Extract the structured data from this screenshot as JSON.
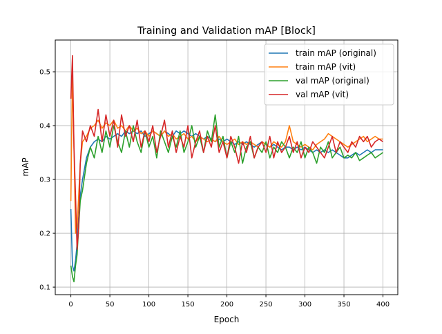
{
  "chart_data": {
    "type": "line",
    "title": "Training and Validation mAP [Block]",
    "xlabel": "Epoch",
    "ylabel": "mAP",
    "xlim": [
      -20,
      419
    ],
    "ylim": [
      0.086,
      0.559
    ],
    "xticks": [
      0,
      50,
      100,
      150,
      200,
      250,
      300,
      350,
      400
    ],
    "yticks": [
      0.1,
      0.2,
      0.3,
      0.4,
      0.5
    ],
    "grid": true,
    "legend_position": "top-right",
    "x": [
      0,
      2,
      4,
      6,
      8,
      10,
      12,
      15,
      20,
      25,
      30,
      35,
      40,
      45,
      50,
      55,
      60,
      65,
      70,
      75,
      80,
      85,
      90,
      95,
      100,
      105,
      110,
      115,
      120,
      125,
      130,
      135,
      140,
      145,
      150,
      155,
      160,
      165,
      170,
      175,
      180,
      185,
      190,
      195,
      200,
      205,
      210,
      215,
      220,
      225,
      230,
      235,
      240,
      245,
      250,
      255,
      260,
      265,
      270,
      275,
      280,
      285,
      290,
      295,
      300,
      305,
      310,
      315,
      320,
      325,
      330,
      335,
      340,
      345,
      350,
      355,
      360,
      365,
      370,
      375,
      380,
      385,
      390,
      395,
      400
    ],
    "series": [
      {
        "name": "train mAP (original)",
        "color": "#1f77b4",
        "values": [
          0.245,
          0.14,
          0.13,
          0.15,
          0.18,
          0.23,
          0.27,
          0.3,
          0.34,
          0.36,
          0.37,
          0.375,
          0.37,
          0.38,
          0.375,
          0.38,
          0.385,
          0.38,
          0.39,
          0.385,
          0.39,
          0.385,
          0.39,
          0.38,
          0.385,
          0.39,
          0.385,
          0.38,
          0.39,
          0.385,
          0.38,
          0.39,
          0.385,
          0.39,
          0.385,
          0.38,
          0.385,
          0.38,
          0.375,
          0.38,
          0.375,
          0.37,
          0.375,
          0.37,
          0.375,
          0.37,
          0.365,
          0.37,
          0.365,
          0.37,
          0.365,
          0.36,
          0.365,
          0.37,
          0.365,
          0.36,
          0.365,
          0.36,
          0.355,
          0.36,
          0.36,
          0.355,
          0.36,
          0.355,
          0.36,
          0.355,
          0.35,
          0.355,
          0.35,
          0.355,
          0.35,
          0.355,
          0.35,
          0.345,
          0.34,
          0.34,
          0.345,
          0.35,
          0.345,
          0.35,
          0.355,
          0.35,
          0.355,
          0.355,
          0.355
        ]
      },
      {
        "name": "train mAP (vit)",
        "color": "#ff7f0e",
        "values": [
          0.26,
          0.5,
          0.36,
          0.2,
          0.21,
          0.27,
          0.33,
          0.37,
          0.38,
          0.395,
          0.4,
          0.41,
          0.395,
          0.405,
          0.4,
          0.41,
          0.395,
          0.4,
          0.39,
          0.4,
          0.39,
          0.395,
          0.385,
          0.39,
          0.38,
          0.39,
          0.385,
          0.38,
          0.39,
          0.38,
          0.385,
          0.375,
          0.38,
          0.385,
          0.375,
          0.38,
          0.37,
          0.38,
          0.375,
          0.37,
          0.375,
          0.37,
          0.38,
          0.37,
          0.365,
          0.37,
          0.375,
          0.365,
          0.37,
          0.365,
          0.37,
          0.365,
          0.36,
          0.37,
          0.365,
          0.36,
          0.37,
          0.365,
          0.36,
          0.37,
          0.4,
          0.37,
          0.365,
          0.36,
          0.365,
          0.36,
          0.355,
          0.365,
          0.37,
          0.375,
          0.385,
          0.38,
          0.375,
          0.37,
          0.365,
          0.36,
          0.365,
          0.37,
          0.375,
          0.38,
          0.37,
          0.375,
          0.38,
          0.375,
          0.375
        ]
      },
      {
        "name": "val mAP (original)",
        "color": "#2ca02c",
        "values": [
          0.14,
          0.12,
          0.11,
          0.14,
          0.16,
          0.21,
          0.26,
          0.28,
          0.33,
          0.36,
          0.34,
          0.38,
          0.35,
          0.39,
          0.36,
          0.4,
          0.37,
          0.35,
          0.39,
          0.36,
          0.4,
          0.37,
          0.35,
          0.39,
          0.36,
          0.38,
          0.34,
          0.39,
          0.37,
          0.35,
          0.38,
          0.36,
          0.39,
          0.35,
          0.37,
          0.4,
          0.36,
          0.38,
          0.35,
          0.39,
          0.37,
          0.42,
          0.36,
          0.38,
          0.34,
          0.37,
          0.35,
          0.38,
          0.33,
          0.36,
          0.37,
          0.34,
          0.36,
          0.35,
          0.37,
          0.34,
          0.36,
          0.35,
          0.37,
          0.36,
          0.34,
          0.36,
          0.35,
          0.37,
          0.34,
          0.36,
          0.35,
          0.33,
          0.36,
          0.35,
          0.37,
          0.34,
          0.35,
          0.36,
          0.34,
          0.345,
          0.34,
          0.35,
          0.335,
          0.34,
          0.345,
          0.35,
          0.34,
          0.345,
          0.35
        ]
      },
      {
        "name": "val mAP (vit)",
        "color": "#d62728",
        "values": [
          0.45,
          0.53,
          0.36,
          0.27,
          0.17,
          0.21,
          0.33,
          0.39,
          0.37,
          0.4,
          0.38,
          0.43,
          0.37,
          0.42,
          0.38,
          0.41,
          0.36,
          0.42,
          0.38,
          0.4,
          0.37,
          0.41,
          0.36,
          0.39,
          0.37,
          0.4,
          0.35,
          0.38,
          0.41,
          0.36,
          0.39,
          0.35,
          0.38,
          0.36,
          0.4,
          0.34,
          0.37,
          0.39,
          0.35,
          0.38,
          0.36,
          0.4,
          0.35,
          0.37,
          0.34,
          0.38,
          0.36,
          0.33,
          0.37,
          0.35,
          0.38,
          0.34,
          0.36,
          0.37,
          0.35,
          0.38,
          0.34,
          0.37,
          0.35,
          0.36,
          0.38,
          0.35,
          0.37,
          0.34,
          0.36,
          0.35,
          0.37,
          0.36,
          0.35,
          0.34,
          0.36,
          0.38,
          0.35,
          0.37,
          0.36,
          0.35,
          0.37,
          0.36,
          0.38,
          0.37,
          0.38,
          0.36,
          0.37,
          0.375,
          0.37
        ]
      }
    ]
  }
}
